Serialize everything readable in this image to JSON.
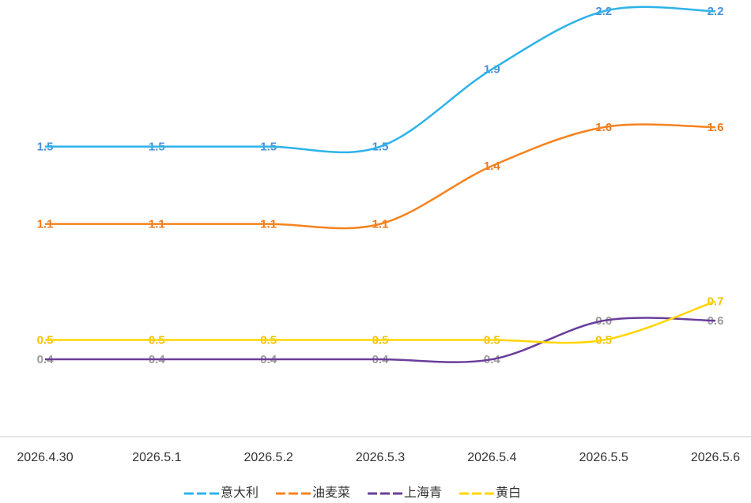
{
  "chart_data": {
    "type": "line",
    "categories": [
      "2026.4.30",
      "2026.5.1",
      "2026.5.2",
      "2026.5.3",
      "2026.5.4",
      "2026.5.5",
      "2026.5.6"
    ],
    "ylim": [
      0,
      2.25
    ],
    "series": [
      {
        "name": "意大利",
        "color": "#2cb3ea",
        "label_color": "#4a90d9",
        "values": [
          1.5,
          1.5,
          1.5,
          1.5,
          1.9,
          2.2,
          2.2
        ]
      },
      {
        "name": "油麦菜",
        "color": "#f5831f",
        "label_color": "#f0781a",
        "values": [
          1.1,
          1.1,
          1.1,
          1.1,
          1.4,
          1.6,
          1.6
        ]
      },
      {
        "name": "上海青",
        "color": "#6a3d9a",
        "label_color": "#9a9a9a",
        "values": [
          0.4,
          0.4,
          0.4,
          0.4,
          0.4,
          0.6,
          0.6
        ]
      },
      {
        "name": "黄白",
        "color": "#ffd500",
        "label_color": "#f5c000",
        "values": [
          0.5,
          0.5,
          0.5,
          0.5,
          0.5,
          0.5,
          0.7
        ]
      }
    ]
  }
}
